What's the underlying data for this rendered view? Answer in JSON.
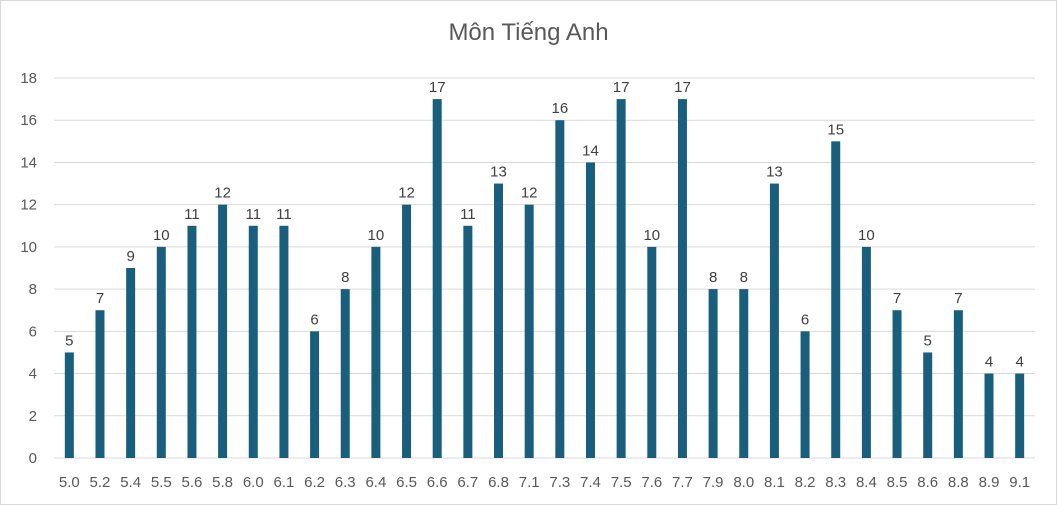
{
  "chart_data": {
    "type": "bar",
    "title": "Môn Tiếng Anh",
    "xlabel": "",
    "ylabel": "",
    "categories": [
      "5.0",
      "5.2",
      "5.4",
      "5.5",
      "5.6",
      "5.8",
      "6.0",
      "6.1",
      "6.2",
      "6.3",
      "6.4",
      "6.5",
      "6.6",
      "6.7",
      "6.8",
      "7.1",
      "7.3",
      "7.4",
      "7.5",
      "7.6",
      "7.7",
      "7.9",
      "8.0",
      "8.1",
      "8.2",
      "8.3",
      "8.4",
      "8.5",
      "8.6",
      "8.8",
      "8.9",
      "9.1"
    ],
    "values": [
      5,
      7,
      9,
      10,
      11,
      12,
      11,
      11,
      6,
      8,
      10,
      12,
      17,
      11,
      13,
      12,
      16,
      14,
      17,
      10,
      17,
      8,
      8,
      13,
      6,
      15,
      10,
      7,
      5,
      7,
      4,
      4
    ],
    "ylim": [
      0,
      18
    ],
    "yticks": [
      0,
      2,
      4,
      6,
      8,
      10,
      12,
      14,
      16,
      18
    ],
    "grid": true,
    "data_labels": true,
    "legend": "none",
    "bar_color": "#1a5e7d",
    "grid_color": "#d9d9d9"
  }
}
